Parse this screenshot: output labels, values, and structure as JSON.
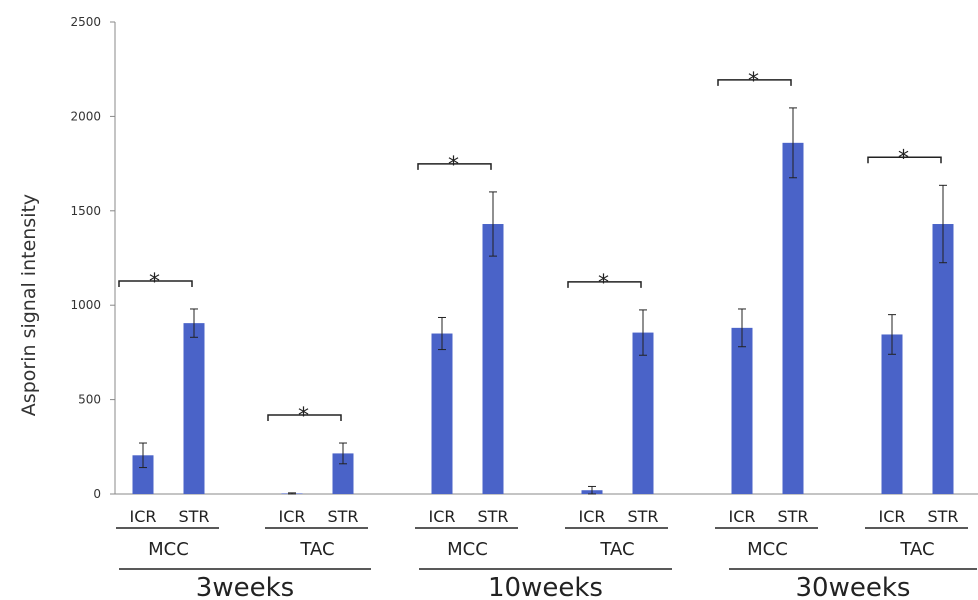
{
  "chart_data": {
    "type": "bar",
    "ylabel": "Asporin signal intensity",
    "ylim": [
      0,
      2500
    ],
    "yticks": [
      0,
      500,
      1000,
      1500,
      2000,
      2500
    ],
    "grid": false,
    "bar_color": "#4a63c8",
    "conditions": [
      "ICR",
      "STR"
    ],
    "regions": [
      "MCC",
      "TAC"
    ],
    "timepoints": [
      "3weeks",
      "10weeks",
      "30weeks"
    ],
    "groups": [
      {
        "timepoint": "3weeks",
        "region": "MCC",
        "values": [
          205,
          905
        ],
        "errors": [
          65,
          75
        ],
        "significance": "*"
      },
      {
        "timepoint": "3weeks",
        "region": "TAC",
        "values": [
          3,
          215
        ],
        "errors": [
          3,
          55
        ],
        "significance": "*"
      },
      {
        "timepoint": "10weeks",
        "region": "MCC",
        "values": [
          850,
          1430
        ],
        "errors": [
          85,
          170
        ],
        "significance": "*"
      },
      {
        "timepoint": "10weeks",
        "region": "TAC",
        "values": [
          20,
          855
        ],
        "errors": [
          20,
          120
        ],
        "significance": "*"
      },
      {
        "timepoint": "30weeks",
        "region": "MCC",
        "values": [
          880,
          1860
        ],
        "errors": [
          100,
          185
        ],
        "significance": "*"
      },
      {
        "timepoint": "30weeks",
        "region": "TAC",
        "values": [
          845,
          1430
        ],
        "errors": [
          105,
          205
        ],
        "significance": "*"
      }
    ]
  }
}
